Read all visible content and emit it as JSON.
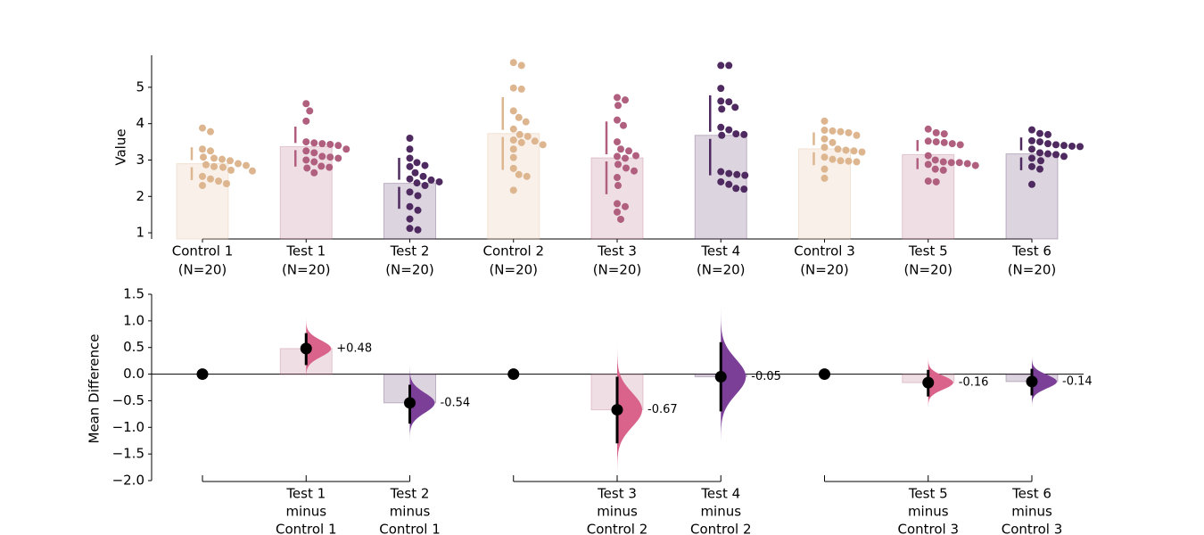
{
  "chart_data": [
    {
      "type": "swarm",
      "ylabel": "Value",
      "ylim": [
        0.83,
        5.88
      ],
      "yticks": [
        1,
        2,
        3,
        4,
        5
      ],
      "series": [
        {
          "name": "Control 1",
          "note": "(N=20)",
          "color": "#ddb690",
          "mean": 2.9,
          "sd": 0.45,
          "values": [
            3.88,
            3.78,
            3.3,
            3.25,
            3.08,
            3.05,
            3.02,
            2.98,
            2.9,
            2.87,
            2.85,
            2.82,
            2.8,
            2.72,
            2.7,
            2.55,
            2.48,
            2.42,
            2.35,
            2.3
          ]
        },
        {
          "name": "Test 1",
          "note": "(N=20)",
          "color": "#b0607e",
          "mean": 3.37,
          "sd": 0.55,
          "values": [
            4.55,
            4.35,
            4.07,
            3.5,
            3.47,
            3.45,
            3.43,
            3.4,
            3.3,
            3.25,
            3.2,
            3.1,
            3.08,
            3.05,
            3.0,
            2.95,
            2.83,
            2.8,
            2.78,
            2.65
          ]
        },
        {
          "name": "Test 2",
          "note": "(N=20)",
          "color": "#4f2a60",
          "mean": 2.36,
          "sd": 0.7,
          "values": [
            3.6,
            3.3,
            3.05,
            2.93,
            2.85,
            2.82,
            2.65,
            2.55,
            2.48,
            2.45,
            2.4,
            2.37,
            2.3,
            2.12,
            2.02,
            1.72,
            1.62,
            1.38,
            1.12,
            1.08
          ]
        },
        {
          "name": "Control 2",
          "note": "(N=20)",
          "color": "#ddb690",
          "mean": 3.73,
          "sd": 1.0,
          "values": [
            5.68,
            5.6,
            4.98,
            4.95,
            4.35,
            4.17,
            4.05,
            3.85,
            3.7,
            3.65,
            3.55,
            3.52,
            3.48,
            3.42,
            3.3,
            3.07,
            2.77,
            2.6,
            2.55,
            2.17
          ]
        },
        {
          "name": "Test 3",
          "note": "(N=20)",
          "color": "#b0607e",
          "mean": 3.06,
          "sd": 1.0,
          "values": [
            4.72,
            4.65,
            4.5,
            4.1,
            3.95,
            3.5,
            3.3,
            3.25,
            3.12,
            3.1,
            3.05,
            2.88,
            2.78,
            2.7,
            2.52,
            2.3,
            1.8,
            1.72,
            1.57,
            1.37
          ]
        },
        {
          "name": "Test 4",
          "note": "(N=20)",
          "color": "#4f2a60",
          "mean": 3.68,
          "sd": 1.1,
          "values": [
            5.6,
            5.6,
            4.97,
            4.62,
            4.6,
            4.45,
            4.4,
            3.9,
            3.83,
            3.72,
            3.7,
            3.68,
            2.68,
            2.63,
            2.6,
            2.58,
            2.4,
            2.33,
            2.22,
            2.2
          ]
        },
        {
          "name": "Control 3",
          "note": "(N=20)",
          "color": "#ddb690",
          "mean": 3.31,
          "sd": 0.45,
          "values": [
            4.07,
            3.82,
            3.8,
            3.78,
            3.75,
            3.68,
            3.58,
            3.48,
            3.35,
            3.3,
            3.27,
            3.25,
            3.22,
            3.08,
            3.02,
            2.98,
            2.97,
            2.95,
            2.75,
            2.5
          ]
        },
        {
          "name": "Test 5",
          "note": "(N=20)",
          "color": "#b0607e",
          "mean": 3.15,
          "sd": 0.4,
          "values": [
            3.85,
            3.75,
            3.72,
            3.52,
            3.5,
            3.48,
            3.45,
            3.42,
            3.12,
            3.0,
            2.95,
            2.93,
            2.93,
            2.9,
            2.88,
            2.85,
            2.75,
            2.72,
            2.42,
            2.4
          ]
        },
        {
          "name": "Test 6",
          "note": "(N=20)",
          "color": "#4f2a60",
          "mean": 3.17,
          "sd": 0.45,
          "values": [
            3.83,
            3.73,
            3.7,
            3.53,
            3.5,
            3.45,
            3.42,
            3.4,
            3.38,
            3.37,
            3.3,
            3.2,
            3.17,
            3.15,
            3.1,
            3.05,
            2.98,
            2.82,
            2.75,
            2.33
          ]
        }
      ]
    },
    {
      "type": "estimation",
      "ylabel": "Mean Difference",
      "ylim": [
        -2.0,
        1.5
      ],
      "yticks": [
        {
          "value": -2.0,
          "label": "−2.0"
        },
        {
          "value": -1.5,
          "label": "−1.5"
        },
        {
          "value": -1.0,
          "label": "−1.0"
        },
        {
          "value": -0.5,
          "label": "−0.5"
        },
        {
          "value": 0.0,
          "label": "0.0"
        },
        {
          "value": 0.5,
          "label": "0.5"
        },
        {
          "value": 1.0,
          "label": "1.0"
        },
        {
          "value": 1.5,
          "label": "1.5"
        }
      ],
      "categories": [
        null,
        [
          "Test 1",
          "minus",
          "Control 1"
        ],
        [
          "Test 2",
          "minus",
          "Control 1"
        ],
        null,
        [
          "Test 3",
          "minus",
          "Control 2"
        ],
        [
          "Test 4",
          "minus",
          "Control 2"
        ],
        null,
        [
          "Test 5",
          "minus",
          "Control 3"
        ],
        [
          "Test 6",
          "minus",
          "Control 3"
        ]
      ],
      "values": [
        0,
        0.48,
        -0.54,
        0,
        -0.67,
        -0.05,
        0,
        -0.16,
        -0.14
      ],
      "value_labels": [
        null,
        "+0.48",
        "-0.54",
        null,
        "-0.67",
        "-0.05",
        null,
        "-0.16",
        "-0.14"
      ],
      "ci": [
        null,
        [
          0.17,
          0.77
        ],
        [
          -0.93,
          -0.2
        ],
        null,
        [
          -1.3,
          -0.05
        ],
        [
          -0.7,
          0.6
        ],
        null,
        [
          -0.42,
          0.08
        ],
        [
          -0.4,
          0.1
        ]
      ],
      "colors": [
        "#ddb690",
        "#b0607e",
        "#4f2a60",
        "#ddb690",
        "#b0607e",
        "#4f2a60",
        "#ddb690",
        "#b0607e",
        "#4f2a60"
      ],
      "violin_colors": [
        null,
        "#d9638a",
        "#7b3f98",
        null,
        "#d9638a",
        "#7b3f98",
        null,
        "#d9638a",
        "#7b3f98"
      ]
    }
  ]
}
